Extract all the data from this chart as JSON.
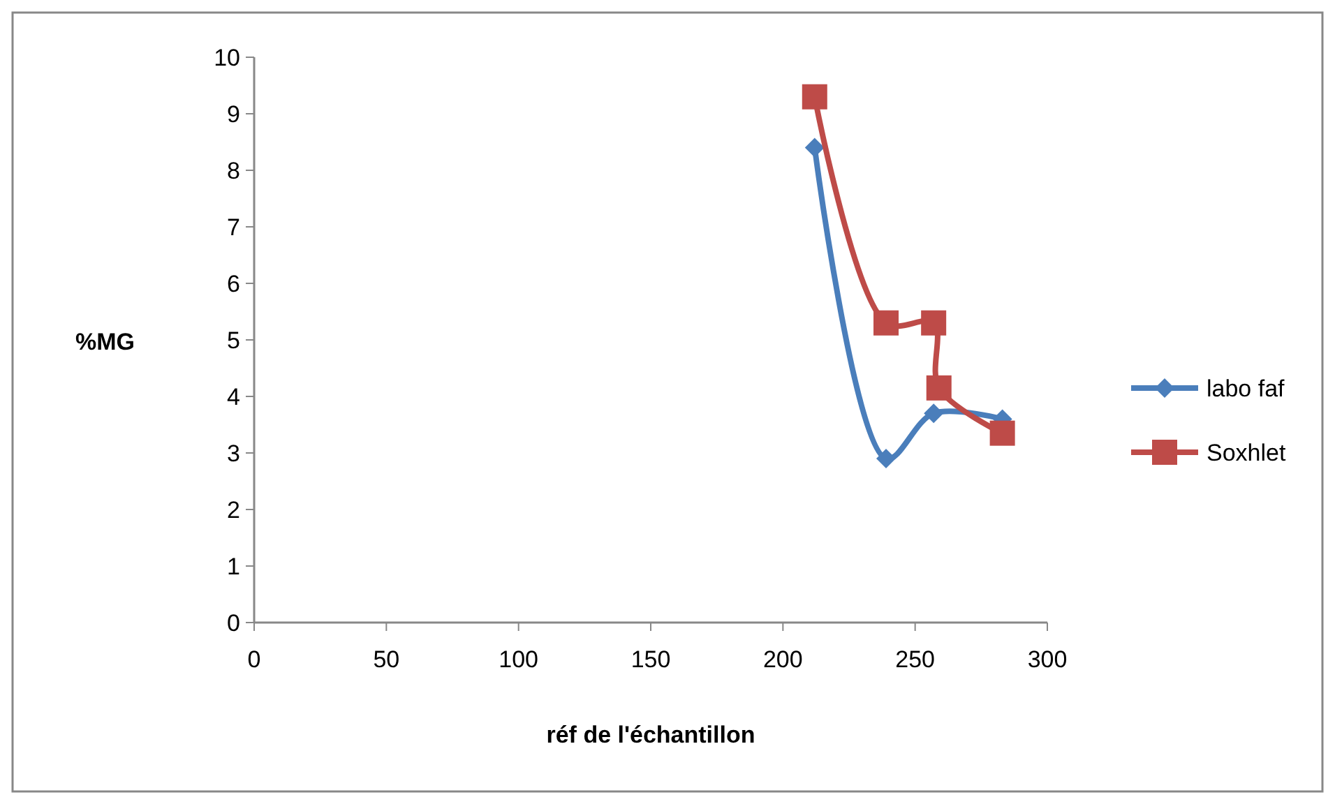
{
  "chart_data": {
    "type": "line",
    "xlabel": "réf  de l'échantillon",
    "ylabel": "%MG",
    "xlim": [
      0,
      300
    ],
    "xticks": [
      0,
      50,
      100,
      150,
      200,
      250,
      300
    ],
    "ylim": [
      0,
      10
    ],
    "yticks": [
      0,
      1,
      2,
      3,
      4,
      5,
      6,
      7,
      8,
      9,
      10
    ],
    "grid": false,
    "legend": "right",
    "series": [
      {
        "name": "labo faf",
        "color": "#4a7ebb",
        "marker": "diamond",
        "x": [
          212,
          239,
          257,
          283
        ],
        "values": [
          8.4,
          2.9,
          3.7,
          3.6
        ]
      },
      {
        "name": "Soxhlet",
        "color": "#be4b48",
        "marker": "square",
        "x": [
          212,
          239,
          257,
          259,
          283
        ],
        "values": [
          9.3,
          5.3,
          5.3,
          4.15,
          3.35
        ]
      }
    ]
  }
}
